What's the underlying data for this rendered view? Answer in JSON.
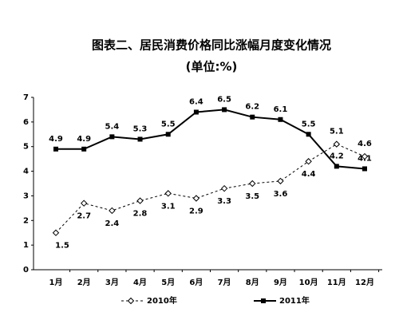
{
  "chart_data": {
    "type": "line",
    "title": "图表二、居民消费价格同比涨幅月度变化情况",
    "subtitle": "(单位:%)",
    "categories": [
      "1月",
      "2月",
      "3月",
      "4月",
      "5月",
      "6月",
      "7月",
      "8月",
      "9月",
      "10月",
      "11月",
      "12月"
    ],
    "series": [
      {
        "name": "2010年",
        "color": "#000000",
        "values": [
          1.5,
          2.7,
          2.4,
          2.8,
          3.1,
          2.9,
          3.3,
          3.5,
          3.6,
          4.4,
          5.1,
          4.6
        ]
      },
      {
        "name": "2011年",
        "color": "#000000",
        "values": [
          4.9,
          4.9,
          5.4,
          5.3,
          5.5,
          6.4,
          6.5,
          6.2,
          6.1,
          5.5,
          4.2,
          4.1
        ]
      }
    ],
    "ylim": [
      0,
      7
    ],
    "yticks": [
      0,
      1,
      2,
      3,
      4,
      5,
      6,
      7
    ]
  }
}
